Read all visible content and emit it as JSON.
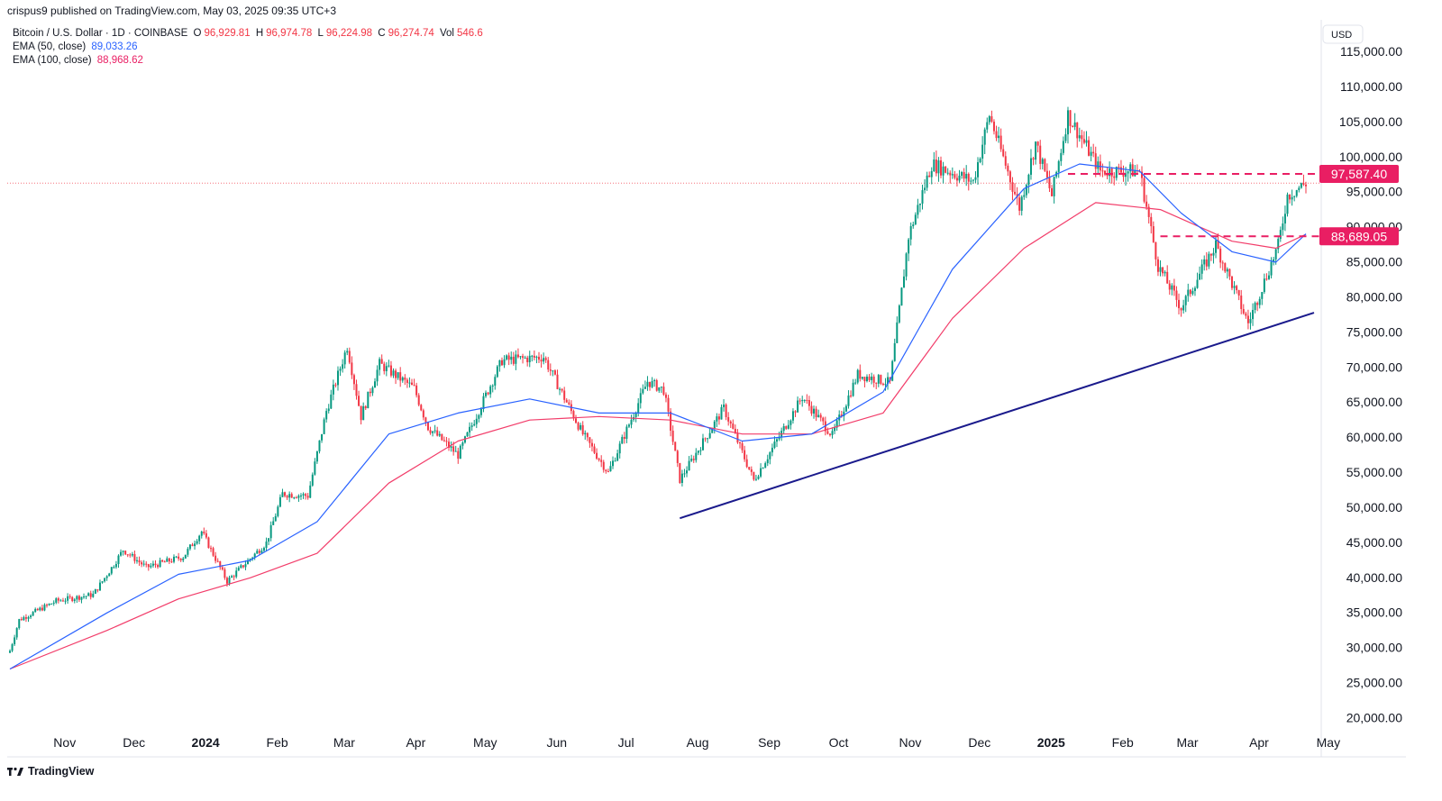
{
  "publish_line": "crispus9 published on TradingView.com, May 03, 2025 09:35 UTC+3",
  "legend": {
    "symbol": "Bitcoin / U.S. Dollar · 1D · COINBASE",
    "open_key": "O",
    "open": "96,929.81",
    "high_key": "H",
    "high": "96,974.78",
    "low_key": "L",
    "low": "96,224.98",
    "close_key": "C",
    "close": "96,274.74",
    "vol_key": "Vol",
    "vol": "546.6",
    "ema50_label": "EMA (50, close)",
    "ema50_value": "89,033.26",
    "ema100_label": "EMA (100, close)",
    "ema100_value": "88,968.62"
  },
  "footer": {
    "brand": "TradingView"
  },
  "colors": {
    "up": "#089981",
    "down": "#f23645",
    "ema50": "#2962ff",
    "ema100": "#f23d6a",
    "trendline": "#1a1a8c",
    "level": "#e91e63",
    "last_price": "#f23645"
  },
  "chart_data": {
    "type": "candlestick",
    "currency": "USD",
    "ylim": [
      17500,
      118000
    ],
    "y_ticks": [
      {
        "value": 20000,
        "label": "20,000.00"
      },
      {
        "value": 25000,
        "label": "25,000.00"
      },
      {
        "value": 30000,
        "label": "30,000.00"
      },
      {
        "value": 35000,
        "label": "35,000.00"
      },
      {
        "value": 40000,
        "label": "40,000.00"
      },
      {
        "value": 45000,
        "label": "45,000.00"
      },
      {
        "value": 50000,
        "label": "50,000.00"
      },
      {
        "value": 55000,
        "label": "55,000.00"
      },
      {
        "value": 60000,
        "label": "60,000.00"
      },
      {
        "value": 65000,
        "label": "65,000.00"
      },
      {
        "value": 70000,
        "label": "70,000.00"
      },
      {
        "value": 75000,
        "label": "75,000.00"
      },
      {
        "value": 80000,
        "label": "80,000.00"
      },
      {
        "value": 85000,
        "label": "85,000.00"
      },
      {
        "value": 90000,
        "label": "90,000.00"
      },
      {
        "value": 95000,
        "label": "95,000.00"
      },
      {
        "value": 100000,
        "label": "100,000.00"
      },
      {
        "value": 105000,
        "label": "105,000.00"
      },
      {
        "value": 110000,
        "label": "110,000.00"
      },
      {
        "value": 115000,
        "label": "115,000.00"
      }
    ],
    "x_ticks": [
      {
        "date": "2023-11-01",
        "label": "Nov",
        "bold": false
      },
      {
        "date": "2023-12-01",
        "label": "Dec",
        "bold": false
      },
      {
        "date": "2024-01-01",
        "label": "2024",
        "bold": true
      },
      {
        "date": "2024-02-01",
        "label": "Feb",
        "bold": false
      },
      {
        "date": "2024-03-01",
        "label": "Mar",
        "bold": false
      },
      {
        "date": "2024-04-01",
        "label": "Apr",
        "bold": false
      },
      {
        "date": "2024-05-01",
        "label": "May",
        "bold": false
      },
      {
        "date": "2024-06-01",
        "label": "Jun",
        "bold": false
      },
      {
        "date": "2024-07-01",
        "label": "Jul",
        "bold": false
      },
      {
        "date": "2024-08-01",
        "label": "Aug",
        "bold": false
      },
      {
        "date": "2024-09-01",
        "label": "Sep",
        "bold": false
      },
      {
        "date": "2024-10-01",
        "label": "Oct",
        "bold": false
      },
      {
        "date": "2024-11-01",
        "label": "Nov",
        "bold": false
      },
      {
        "date": "2024-12-01",
        "label": "Dec",
        "bold": false
      },
      {
        "date": "2025-01-01",
        "label": "2025",
        "bold": true
      },
      {
        "date": "2025-02-01",
        "label": "Feb",
        "bold": false
      },
      {
        "date": "2025-03-01",
        "label": "Mar",
        "bold": false
      },
      {
        "date": "2025-04-01",
        "label": "Apr",
        "bold": false
      },
      {
        "date": "2025-05-01",
        "label": "May",
        "bold": false
      }
    ],
    "first_date": "2023-10-20",
    "last_date": "2025-05-03",
    "price_path": [
      {
        "date": "2023-10-20",
        "close": 29600
      },
      {
        "date": "2023-10-24",
        "close": 34000
      },
      {
        "date": "2023-11-09",
        "close": 36700
      },
      {
        "date": "2023-11-25",
        "close": 37600
      },
      {
        "date": "2023-12-04",
        "close": 41900
      },
      {
        "date": "2023-12-08",
        "close": 44000
      },
      {
        "date": "2023-12-18",
        "close": 41500
      },
      {
        "date": "2024-01-03",
        "close": 43000
      },
      {
        "date": "2024-01-11",
        "close": 46600
      },
      {
        "date": "2024-01-22",
        "close": 39500
      },
      {
        "date": "2024-02-08",
        "close": 45000
      },
      {
        "date": "2024-02-15",
        "close": 52000
      },
      {
        "date": "2024-02-26",
        "close": 51700
      },
      {
        "date": "2024-03-05",
        "close": 63800
      },
      {
        "date": "2024-03-14",
        "close": 73000
      },
      {
        "date": "2024-03-20",
        "close": 63000
      },
      {
        "date": "2024-03-28",
        "close": 70500
      },
      {
        "date": "2024-04-12",
        "close": 67000
      },
      {
        "date": "2024-04-18",
        "close": 61500
      },
      {
        "date": "2024-05-01",
        "close": 57500
      },
      {
        "date": "2024-05-20",
        "close": 71000
      },
      {
        "date": "2024-06-07",
        "close": 71500
      },
      {
        "date": "2024-06-24",
        "close": 60500
      },
      {
        "date": "2024-07-05",
        "close": 55000
      },
      {
        "date": "2024-07-22",
        "close": 68000
      },
      {
        "date": "2024-07-29",
        "close": 66800
      },
      {
        "date": "2024-08-05",
        "close": 54000
      },
      {
        "date": "2024-08-24",
        "close": 64200
      },
      {
        "date": "2024-09-06",
        "close": 53900
      },
      {
        "date": "2024-09-27",
        "close": 65800
      },
      {
        "date": "2024-10-10",
        "close": 60300
      },
      {
        "date": "2024-10-21",
        "close": 69000
      },
      {
        "date": "2024-11-04",
        "close": 67800
      },
      {
        "date": "2024-11-12",
        "close": 88700
      },
      {
        "date": "2024-11-22",
        "close": 99000
      },
      {
        "date": "2024-12-10",
        "close": 96500
      },
      {
        "date": "2024-12-17",
        "close": 106000
      },
      {
        "date": "2024-12-30",
        "close": 92800
      },
      {
        "date": "2025-01-06",
        "close": 102000
      },
      {
        "date": "2025-01-13",
        "close": 94500
      },
      {
        "date": "2025-01-20",
        "close": 106000
      },
      {
        "date": "2025-02-03",
        "close": 98000
      },
      {
        "date": "2025-02-20",
        "close": 98000
      },
      {
        "date": "2025-02-28",
        "close": 84500
      },
      {
        "date": "2025-03-10",
        "close": 78500
      },
      {
        "date": "2025-03-25",
        "close": 87500
      },
      {
        "date": "2025-04-08",
        "close": 76300
      },
      {
        "date": "2025-04-21",
        "close": 87400
      },
      {
        "date": "2025-04-25",
        "close": 94500
      },
      {
        "date": "2025-05-03",
        "close": 96274.74
      }
    ],
    "ema50_path": [
      {
        "date": "2023-10-20",
        "value": 27000
      },
      {
        "date": "2023-12-01",
        "value": 35000
      },
      {
        "date": "2024-01-01",
        "value": 40500
      },
      {
        "date": "2024-02-01",
        "value": 42500
      },
      {
        "date": "2024-03-01",
        "value": 48000
      },
      {
        "date": "2024-04-01",
        "value": 60500
      },
      {
        "date": "2024-05-01",
        "value": 63500
      },
      {
        "date": "2024-06-01",
        "value": 65500
      },
      {
        "date": "2024-07-01",
        "value": 63500
      },
      {
        "date": "2024-08-01",
        "value": 63500
      },
      {
        "date": "2024-09-01",
        "value": 59500
      },
      {
        "date": "2024-10-01",
        "value": 60500
      },
      {
        "date": "2024-11-01",
        "value": 66500
      },
      {
        "date": "2024-12-01",
        "value": 84000
      },
      {
        "date": "2025-01-01",
        "value": 95500
      },
      {
        "date": "2025-01-25",
        "value": 99000
      },
      {
        "date": "2025-02-20",
        "value": 98000
      },
      {
        "date": "2025-03-10",
        "value": 92000
      },
      {
        "date": "2025-04-01",
        "value": 86500
      },
      {
        "date": "2025-04-20",
        "value": 85000
      },
      {
        "date": "2025-05-03",
        "value": 89033.26
      }
    ],
    "ema100_path": [
      {
        "date": "2023-10-20",
        "value": 27000
      },
      {
        "date": "2023-12-01",
        "value": 32500
      },
      {
        "date": "2024-01-01",
        "value": 37000
      },
      {
        "date": "2024-02-01",
        "value": 40000
      },
      {
        "date": "2024-03-01",
        "value": 43500
      },
      {
        "date": "2024-04-01",
        "value": 53500
      },
      {
        "date": "2024-05-01",
        "value": 59500
      },
      {
        "date": "2024-06-01",
        "value": 62500
      },
      {
        "date": "2024-07-01",
        "value": 63000
      },
      {
        "date": "2024-08-01",
        "value": 62500
      },
      {
        "date": "2024-09-01",
        "value": 60500
      },
      {
        "date": "2024-10-01",
        "value": 60500
      },
      {
        "date": "2024-11-01",
        "value": 63500
      },
      {
        "date": "2024-12-01",
        "value": 77000
      },
      {
        "date": "2025-01-01",
        "value": 87000
      },
      {
        "date": "2025-02-01",
        "value": 93500
      },
      {
        "date": "2025-03-01",
        "value": 92500
      },
      {
        "date": "2025-04-01",
        "value": 88000
      },
      {
        "date": "2025-04-20",
        "value": 87000
      },
      {
        "date": "2025-05-03",
        "value": 88968.62
      }
    ],
    "trendline": [
      {
        "date": "2024-08-05",
        "value": 48500
      },
      {
        "date": "2025-05-03",
        "value": 77800
      }
    ],
    "levels": [
      {
        "value": 97587.4,
        "label": "97,587.40",
        "from_date": "2025-01-20"
      },
      {
        "value": 88689.05,
        "label": "88,689.05",
        "from_date": "2025-03-01"
      }
    ],
    "last_price": 96274.74,
    "grid": false,
    "legend_position": "top-left"
  }
}
